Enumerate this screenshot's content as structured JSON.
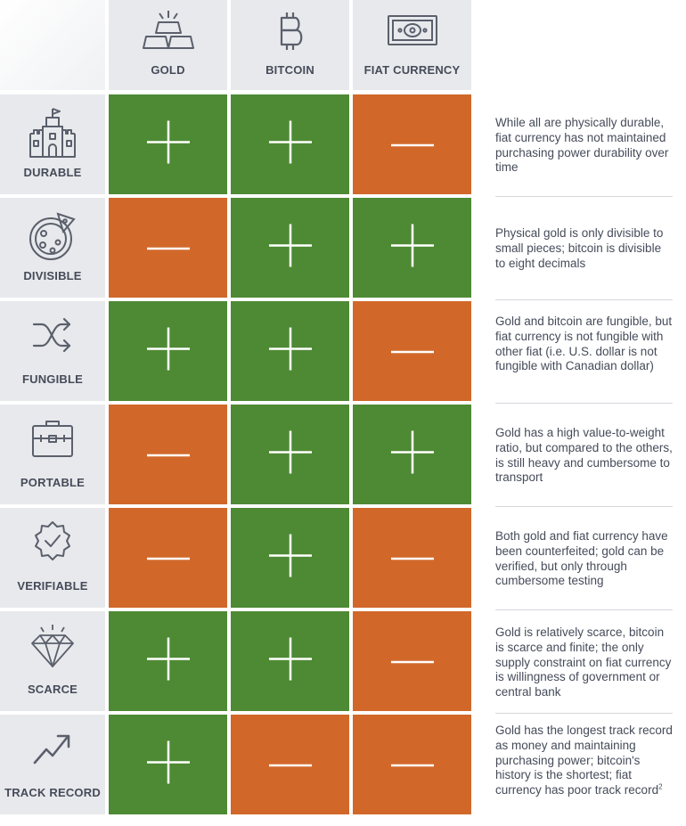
{
  "columns": [
    {
      "label": "GOLD",
      "icon": "gold-bars-icon"
    },
    {
      "label": "BITCOIN",
      "icon": "bitcoin-icon"
    },
    {
      "label": "FIAT CURRENCY",
      "icon": "banknote-icon"
    }
  ],
  "rows": [
    {
      "label": "DURABLE",
      "icon": "castle-icon",
      "values": [
        "+",
        "+",
        "-"
      ],
      "note": "While all are physically durable, fiat currency has not maintained purchasing power durability over time"
    },
    {
      "label": "DIVISIBLE",
      "icon": "pizza-icon",
      "values": [
        "-",
        "+",
        "+"
      ],
      "note": "Physical gold is only divisible to small pieces; bitcoin is divisible to eight decimals"
    },
    {
      "label": "FUNGIBLE",
      "icon": "shuffle-icon",
      "values": [
        "+",
        "+",
        "-"
      ],
      "note": "Gold and bitcoin are fungible, but fiat currency is not fungible with other fiat (i.e. U.S. dollar is not fungible with Canadian dollar)"
    },
    {
      "label": "PORTABLE",
      "icon": "briefcase-icon",
      "values": [
        "-",
        "+",
        "+"
      ],
      "note": "Gold has a high value-to-weight ratio, but compared to the others, is still heavy and cumbersome to transport"
    },
    {
      "label": "VERIFIABLE",
      "icon": "verified-badge-icon",
      "values": [
        "-",
        "+",
        "-"
      ],
      "note": "Both gold and fiat currency have been counterfeited; gold can be verified, but only through cumbersome testing"
    },
    {
      "label": "SCARCE",
      "icon": "diamond-icon",
      "values": [
        "+",
        "+",
        "-"
      ],
      "note": "Gold is relatively scarce, bitcoin is scarce and finite; the only supply constraint on fiat currency is willingness of government or central bank"
    },
    {
      "label": "TRACK RECORD",
      "icon": "trend-up-icon",
      "values": [
        "+",
        "-",
        "-"
      ],
      "note": "Gold has the longest track record as money and maintaining purchasing power; bitcoin's history is the shortest; fiat currency has poor track record",
      "note_sup": "2"
    }
  ],
  "colors": {
    "positive": "#4e8a34",
    "negative": "#d1682a",
    "label_bg": "#e8e9ec",
    "text": "#454b59"
  }
}
